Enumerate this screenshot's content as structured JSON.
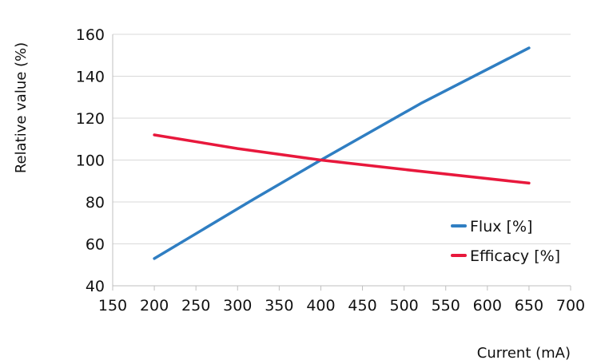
{
  "chart_data": {
    "type": "line",
    "title": "",
    "xlabel": "Current (mA)",
    "ylabel": "Relative value (%)",
    "xlim": [
      150,
      700
    ],
    "ylim": [
      40,
      160
    ],
    "x_ticks": [
      150,
      200,
      250,
      300,
      350,
      400,
      450,
      500,
      550,
      600,
      650,
      700
    ],
    "y_ticks": [
      40,
      60,
      80,
      100,
      120,
      140,
      160
    ],
    "grid": "horizontal",
    "legend_position": "right",
    "series": [
      {
        "name": "Flux [%]",
        "color": "#2f7ec2",
        "x": [
          200,
          320,
          400,
          520,
          650
        ],
        "y": [
          53,
          81.5,
          100,
          127,
          153.5
        ]
      },
      {
        "name": "Efficacy [%]",
        "color": "#e8183c",
        "x": [
          200,
          300,
          400,
          500,
          650
        ],
        "y": [
          112,
          105.5,
          100,
          95.5,
          89
        ]
      }
    ]
  }
}
